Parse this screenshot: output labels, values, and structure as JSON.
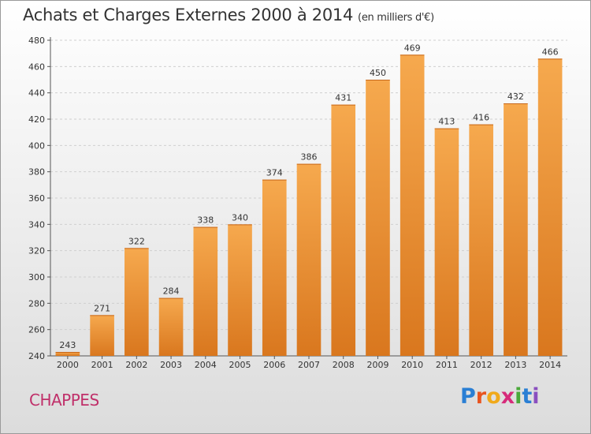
{
  "title": "Achats et Charges Externes 2000 à 2014",
  "subtitle": "(en milliers d'€)",
  "commune": "CHAPPES",
  "logo": {
    "letters": [
      "P",
      "r",
      "o",
      "x",
      "i",
      "t",
      "i"
    ],
    "colors": [
      "#2a7fd4",
      "#e8541f",
      "#f0a91b",
      "#d62b7a",
      "#4aa93a",
      "#2a7fd4",
      "#8a4fbf"
    ]
  },
  "colors": {
    "bar_light": "#f6a94e",
    "bar_dark": "#d9771e",
    "accent": "#c0306a"
  },
  "chart_data": {
    "type": "bar",
    "title": "Achats et Charges Externes 2000 à 2014",
    "subtitle": "(en milliers d'€)",
    "categories": [
      "2000",
      "2001",
      "2002",
      "2003",
      "2004",
      "2005",
      "2006",
      "2007",
      "2008",
      "2009",
      "2010",
      "2011",
      "2012",
      "2013",
      "2014"
    ],
    "values": [
      243,
      271,
      322,
      284,
      338,
      340,
      374,
      386,
      431,
      450,
      469,
      413,
      416,
      432,
      466
    ],
    "ylim": [
      240,
      480
    ],
    "yticks": [
      240,
      260,
      280,
      300,
      320,
      340,
      360,
      380,
      400,
      420,
      440,
      460,
      480
    ],
    "grid": true,
    "legend": "none"
  }
}
